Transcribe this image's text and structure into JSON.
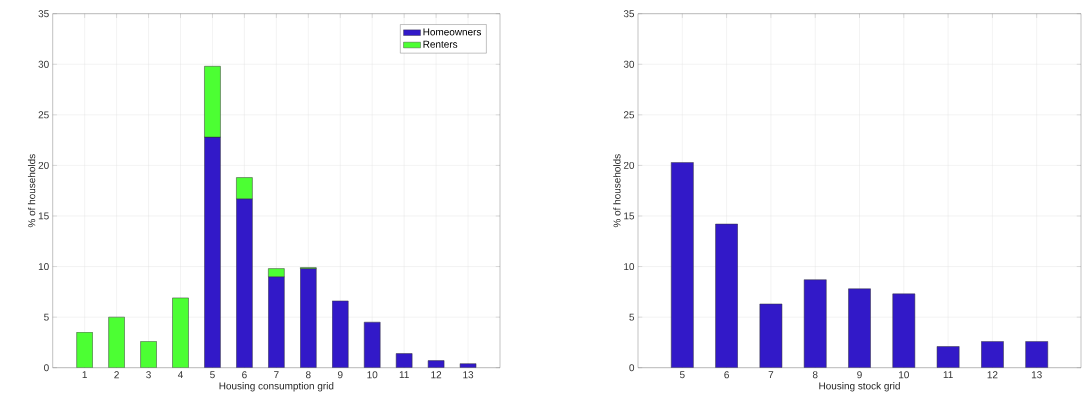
{
  "chart_data": [
    {
      "type": "bar",
      "stacked": true,
      "categories": [
        "1",
        "2",
        "3",
        "4",
        "5",
        "6",
        "7",
        "8",
        "9",
        "10",
        "11",
        "12",
        "13"
      ],
      "xlabel": "Housing consumption grid",
      "ylabel": "% of households",
      "ylim": [
        0,
        35
      ],
      "yticks": [
        0,
        5,
        10,
        15,
        20,
        25,
        30,
        35
      ],
      "grid": true,
      "legend": "top right",
      "series": [
        {
          "name": "Homeowners",
          "color": "#3219c8",
          "values": [
            null,
            null,
            null,
            null,
            22.8,
            16.7,
            9.0,
            9.8,
            6.6,
            4.5,
            1.4,
            0.7,
            0.4
          ]
        },
        {
          "name": "Renters",
          "color": "#4cff33",
          "values": [
            3.5,
            5.0,
            2.6,
            6.9,
            7.0,
            2.1,
            0.8,
            0.1,
            null,
            null,
            null,
            null,
            null
          ]
        }
      ]
    },
    {
      "type": "bar",
      "categories": [
        "5",
        "6",
        "7",
        "8",
        "9",
        "10",
        "11",
        "12",
        "13"
      ],
      "xlabel": "Housing stock grid",
      "ylabel": "% of households",
      "ylim": [
        0,
        35
      ],
      "yticks": [
        0,
        5,
        10,
        15,
        20,
        25,
        30,
        35
      ],
      "grid": true,
      "color": "#3219c8",
      "values": [
        20.3,
        14.2,
        6.3,
        8.7,
        7.8,
        7.3,
        2.1,
        2.6,
        2.6
      ]
    }
  ]
}
